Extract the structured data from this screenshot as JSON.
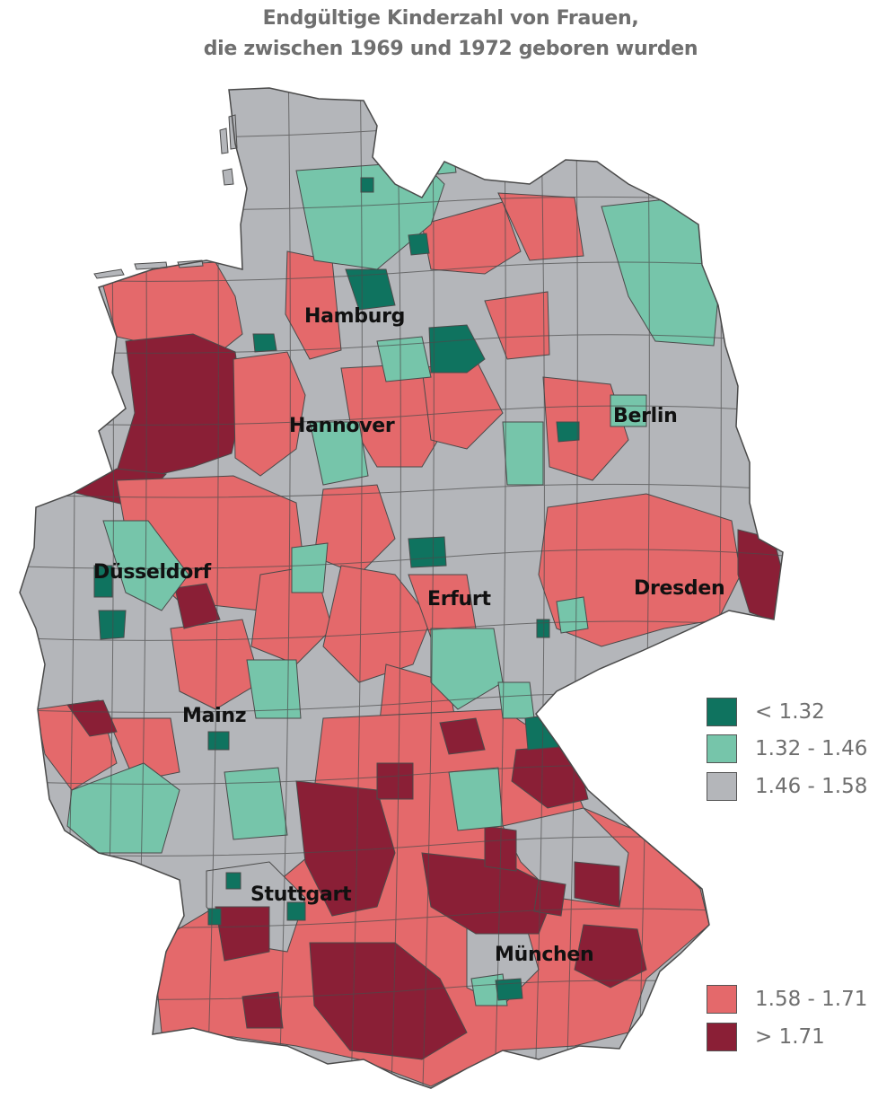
{
  "title": {
    "line1": "Endgültige Kinderzahl von Frauen,",
    "line2": "die zwischen 1969 und 1972 geboren wurden"
  },
  "colors": {
    "very_low": "#0f735f",
    "low": "#76c5aa",
    "medium": "#b4b6ba",
    "high": "#e4696b",
    "very_high": "#8a1f36",
    "border": "#4a4a4a"
  },
  "cities": [
    {
      "name": "Hamburg"
    },
    {
      "name": "Hannover"
    },
    {
      "name": "Berlin"
    },
    {
      "name": "Düsseldorf"
    },
    {
      "name": "Erfurt"
    },
    {
      "name": "Dresden"
    },
    {
      "name": "Mainz"
    },
    {
      "name": "Stuttgart"
    },
    {
      "name": "München"
    }
  ],
  "legend": [
    {
      "label": "< 1.32",
      "color": "#0f735f"
    },
    {
      "label": "1.32 - 1.46",
      "color": "#76c5aa"
    },
    {
      "label": "1.46 - 1.58",
      "color": "#b4b6ba"
    },
    {
      "label": "1.58 - 1.71",
      "color": "#e4696b"
    },
    {
      "label": "> 1.71",
      "color": "#8a1f36"
    }
  ]
}
